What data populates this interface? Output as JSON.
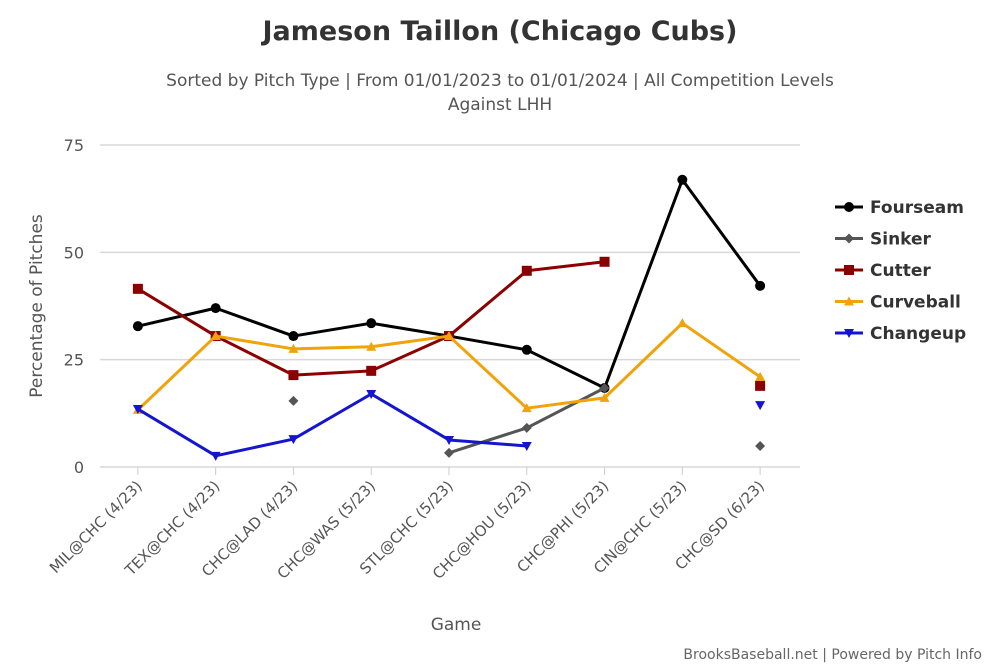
{
  "chart_data": {
    "type": "line",
    "title": "Jameson Taillon (Chicago Cubs)",
    "subtitle_line1": "Sorted by Pitch Type | From 01/01/2023 to 01/01/2024 | All Competition Levels",
    "subtitle_line2": "Against LHH",
    "xlabel": "Game",
    "ylabel": "Percentage of Pitches",
    "ylim": [
      0,
      75
    ],
    "yticks": [
      0,
      25,
      50,
      75
    ],
    "grid": true,
    "legend_placement": "right",
    "categories": [
      "MIL@CHC (4/23)",
      "TEX@CHC (4/23)",
      "CHC@LAD (4/23)",
      "CHC@WAS (5/23)",
      "STL@CHC (5/23)",
      "CHC@HOU (5/23)",
      "CHC@PHI (5/23)",
      "CIN@CHC (5/23)",
      "CHC@SD (6/23)"
    ],
    "series": [
      {
        "name": "Fourseam",
        "color": "#000000",
        "marker": "circle",
        "values": [
          32.8,
          37.0,
          30.5,
          33.5,
          30.5,
          27.3,
          18.4,
          66.9,
          42.2
        ]
      },
      {
        "name": "Sinker",
        "color": "#555555",
        "marker": "diamond",
        "values": [
          null,
          null,
          15.4,
          null,
          3.3,
          9.1,
          18.4,
          null,
          4.9
        ]
      },
      {
        "name": "Cutter",
        "color": "#8b0000",
        "marker": "square",
        "values": [
          41.5,
          30.5,
          21.4,
          22.4,
          30.5,
          45.7,
          47.8,
          null,
          18.9
        ]
      },
      {
        "name": "Curveball",
        "color": "#f0a30a",
        "marker": "triangle",
        "values": [
          13.3,
          30.5,
          27.5,
          28.0,
          30.5,
          13.7,
          16.1,
          33.5,
          21.0
        ]
      },
      {
        "name": "Changeup",
        "color": "#1515d0",
        "marker": "triangle-down",
        "values": [
          13.5,
          2.6,
          6.5,
          17.0,
          6.3,
          4.9,
          null,
          null,
          14.4
        ]
      }
    ],
    "credit": "BrooksBaseball.net | Powered by Pitch Info"
  }
}
